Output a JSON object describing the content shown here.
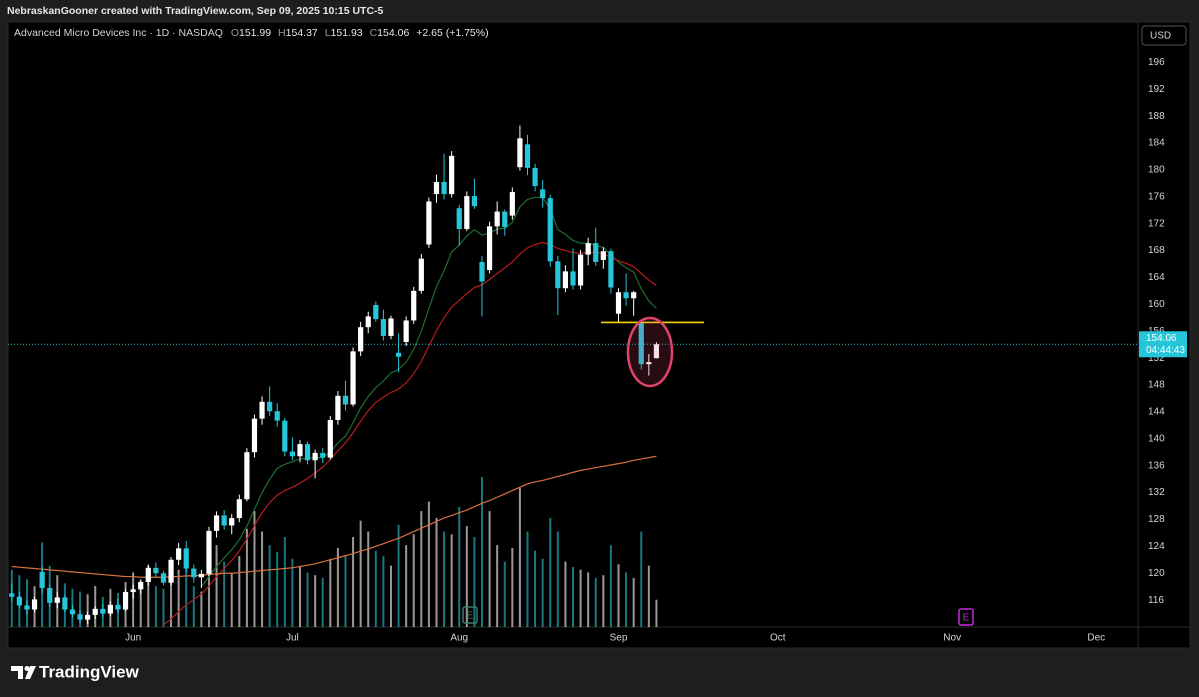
{
  "attribution": "NebraskanGooner created with TradingView.com, Sep 09, 2025 10:15 UTC-5",
  "brand": "TradingView",
  "chart_data": {
    "type": "candlestick",
    "title": "Advanced Micro Devices Inc · 1D · NASDAQ",
    "ohlc_labels": [
      "O",
      "H",
      "L",
      "C"
    ],
    "change": "+2.65 (+1.75%)",
    "currency": "USD",
    "countdown": "04:44:43",
    "last_price": 154.06,
    "up_color": "#ffffff",
    "down_color": "#26c6da",
    "ylim": [
      112,
      202
    ],
    "yticks": [
      116,
      120,
      124,
      128,
      132,
      136,
      140,
      144,
      148,
      152,
      156,
      160,
      164,
      168,
      172,
      176,
      180,
      184,
      188,
      192,
      196
    ],
    "grid": false,
    "categories": [
      null,
      null,
      null,
      null,
      null,
      null,
      null,
      null,
      null,
      null,
      null,
      null,
      null,
      null,
      null,
      null,
      "Jun",
      null,
      null,
      null,
      null,
      null,
      null,
      null,
      null,
      null,
      null,
      null,
      null,
      null,
      null,
      null,
      null,
      null,
      null,
      null,
      null,
      "Jul",
      null,
      null,
      null,
      null,
      null,
      null,
      null,
      null,
      null,
      null,
      null,
      null,
      null,
      null,
      null,
      null,
      null,
      null,
      null,
      null,
      null,
      "Aug",
      null,
      null,
      null,
      null,
      null,
      null,
      null,
      null,
      null,
      null,
      null,
      null,
      null,
      null,
      null,
      null,
      null,
      null,
      null,
      null,
      "Sep",
      null,
      null,
      null,
      null,
      null,
      null,
      null,
      null,
      null,
      null,
      null,
      null,
      null,
      null,
      null,
      null,
      null,
      null,
      null,
      null,
      "Oct",
      null,
      null,
      null,
      null,
      null,
      null,
      null,
      null,
      null,
      null,
      null,
      null,
      null,
      null,
      null,
      null,
      null,
      null,
      null,
      null,
      null,
      null,
      "Nov",
      null,
      null,
      null,
      null,
      null,
      null,
      null,
      null,
      null,
      null,
      null,
      null,
      null,
      null,
      null,
      null,
      null,
      null,
      "Dec",
      null,
      null,
      null,
      null,
      null
    ],
    "open": [
      117,
      116.5,
      115.2,
      114.6,
      120.2,
      117.8,
      115.6,
      116.4,
      114.6,
      113.9,
      113.1,
      113.8,
      114.7,
      114,
      115.3,
      114.6,
      117.2,
      117.6,
      118.7,
      120.8,
      120,
      118.6,
      122,
      123.7,
      120.7,
      119.4,
      119.9,
      126.3,
      128.6,
      127.1,
      128.2,
      131,
      138,
      143,
      145.5,
      144.1,
      142.7,
      138.1,
      137.4,
      139.2,
      136.8,
      137.9,
      137.2,
      142.8,
      146.4,
      145.1,
      153,
      156.6,
      159.9,
      157.8,
      155.3,
      152.8,
      154.4,
      157.6,
      162,
      168.9,
      176.4,
      178.2,
      176.4,
      174.3,
      171.2,
      176.1,
      166.3,
      165.1,
      171.6,
      173.8,
      173.2,
      180.4,
      183.8,
      180.3,
      177.1,
      175.8,
      166.4,
      162.4,
      164.9,
      162.8,
      167.4,
      169.1,
      166.6,
      167.9,
      158.6,
      161.8,
      160.9,
      157.2,
      151.1,
      151.99,
      null,
      null,
      null,
      null,
      null,
      null,
      null,
      null,
      null,
      null,
      null,
      null,
      null,
      null,
      null,
      null,
      null,
      null,
      null,
      null,
      null,
      null,
      null,
      null,
      null,
      null,
      null,
      null,
      null,
      null,
      null,
      null,
      null,
      null,
      null,
      null,
      null,
      null,
      null,
      null,
      null,
      null,
      null,
      null,
      null,
      null,
      null,
      null,
      null,
      null,
      null,
      null,
      null,
      null,
      null,
      null,
      null,
      null,
      null,
      null,
      null,
      null,
      null
    ],
    "high": [
      118.5,
      117.2,
      116,
      116.5,
      121,
      118.3,
      117.2,
      116.8,
      115.3,
      114.5,
      114.3,
      115.1,
      115.4,
      115.8,
      116.2,
      117.6,
      118.3,
      119.1,
      121.3,
      121.6,
      120.4,
      122.4,
      124.5,
      124.8,
      121.3,
      120.5,
      126.9,
      129.2,
      129.4,
      128.8,
      131.7,
      138.6,
      143.6,
      146.3,
      147.8,
      145.3,
      143.1,
      140.2,
      139.8,
      139.6,
      138.4,
      138.6,
      143.4,
      147.1,
      148.6,
      153.6,
      157.4,
      158.9,
      160.4,
      159.2,
      158.3,
      155.7,
      158.2,
      162.6,
      167.5,
      175.9,
      179.3,
      182.4,
      182.8,
      174.8,
      176.8,
      178.7,
      167.2,
      172.3,
      175.3,
      174.1,
      177.4,
      186.6,
      185.2,
      180.9,
      178.5,
      176.3,
      167.2,
      165.8,
      168.3,
      168.1,
      169.9,
      171.4,
      168.5,
      168.3,
      162.4,
      164.6,
      162,
      157.5,
      152.6,
      154.37,
      null,
      null,
      null,
      null,
      null,
      null,
      null,
      null,
      null,
      null,
      null,
      null,
      null,
      null,
      null,
      null,
      null,
      null,
      null,
      null,
      null,
      null,
      null,
      null,
      null,
      null,
      null,
      null,
      null,
      null,
      null,
      null,
      null,
      null,
      null,
      null,
      null,
      null,
      null,
      null,
      null,
      null,
      null,
      null,
      null,
      null,
      null,
      null,
      null,
      null,
      null,
      null,
      null,
      null,
      null,
      null,
      null,
      null,
      null,
      null,
      null,
      null,
      null
    ],
    "low": [
      115.8,
      114.8,
      113.9,
      114.2,
      117,
      115,
      114.8,
      114.2,
      113.4,
      112.6,
      112.5,
      113.2,
      113.5,
      113.6,
      114.1,
      114.3,
      116.2,
      116.9,
      118.1,
      119.4,
      118.2,
      118.2,
      121.2,
      120.1,
      118.6,
      117.8,
      119.6,
      125.3,
      126.5,
      125.8,
      127.6,
      130.7,
      137.2,
      142.1,
      143.4,
      141.8,
      137.4,
      136.8,
      136.5,
      136.2,
      134.1,
      136.4,
      136.9,
      142.1,
      144.2,
      144.8,
      152.3,
      155.7,
      157.4,
      154.6,
      154.8,
      149.9,
      153.8,
      157.1,
      161.6,
      168.4,
      175.1,
      175.6,
      175.9,
      168.7,
      170.9,
      174.2,
      158.2,
      164.6,
      170.4,
      170.2,
      172.6,
      179.9,
      179.2,
      176.8,
      174.4,
      165.6,
      158.4,
      161.8,
      162.2,
      162.2,
      165.8,
      165.7,
      165.3,
      161.6,
      157.4,
      159.8,
      158.3,
      150.3,
      149.4,
      151.93,
      null,
      null,
      null,
      null,
      null,
      null,
      null,
      null,
      null,
      null,
      null,
      null,
      null,
      null,
      null,
      null,
      null,
      null,
      null,
      null,
      null,
      null,
      null,
      null,
      null,
      null,
      null,
      null,
      null,
      null,
      null,
      null,
      null,
      null,
      null,
      null,
      null,
      null,
      null,
      null,
      null,
      null,
      null,
      null,
      null,
      null,
      null,
      null,
      null,
      null,
      null,
      null,
      null,
      null,
      null,
      null,
      null,
      null,
      null,
      null,
      null,
      null,
      null
    ],
    "close": [
      116.5,
      115.2,
      114.6,
      116.1,
      117.8,
      115.6,
      116.4,
      114.6,
      113.9,
      113.1,
      113.8,
      114.7,
      114,
      115.3,
      114.6,
      117.2,
      117.6,
      118.7,
      120.8,
      120,
      118.6,
      122,
      123.7,
      120.7,
      119.4,
      119.9,
      126.3,
      128.6,
      127.1,
      128.2,
      131,
      138,
      143,
      145.5,
      144.1,
      142.7,
      138.1,
      137.4,
      139.2,
      136.8,
      137.9,
      137.2,
      142.8,
      146.4,
      145.1,
      153,
      156.6,
      158.2,
      157.8,
      155.3,
      157.9,
      152.2,
      157.6,
      162,
      166.8,
      175.3,
      178.2,
      176.4,
      182.1,
      171.2,
      176.1,
      174.6,
      163.4,
      171.6,
      173.8,
      171.5,
      176.7,
      184.7,
      180.3,
      177.6,
      175.8,
      166.4,
      162.4,
      164.9,
      162.8,
      167.4,
      169.1,
      166.3,
      167.9,
      162.5,
      161.8,
      160.9,
      161.8,
      151.1,
      151.41,
      154.06,
      null,
      null,
      null,
      null,
      null,
      null,
      null,
      null,
      null,
      null,
      null,
      null,
      null,
      null,
      null,
      null,
      null,
      null,
      null,
      null,
      null,
      null,
      null,
      null,
      null,
      null,
      null,
      null,
      null,
      null,
      null,
      null,
      null,
      null,
      null,
      null,
      null,
      null,
      null,
      null,
      null,
      null,
      null,
      null,
      null,
      null,
      null,
      null,
      null,
      null,
      null,
      null,
      null,
      null,
      null,
      null,
      null,
      null,
      null,
      null,
      null,
      null,
      null
    ],
    "volume": [
      42,
      38,
      35,
      30,
      62,
      45,
      38,
      32,
      28,
      26,
      24,
      30,
      22,
      28,
      25,
      33,
      40,
      34,
      45,
      30,
      28,
      38,
      42,
      44,
      30,
      26,
      55,
      60,
      48,
      40,
      52,
      72,
      85,
      70,
      60,
      55,
      66,
      50,
      44,
      40,
      38,
      36,
      50,
      58,
      52,
      66,
      78,
      70,
      56,
      52,
      45,
      75,
      60,
      68,
      85,
      92,
      80,
      70,
      68,
      88,
      74,
      66,
      110,
      85,
      60,
      48,
      58,
      102,
      70,
      56,
      50,
      80,
      70,
      48,
      44,
      42,
      40,
      36,
      38,
      60,
      46,
      40,
      36,
      70,
      45,
      20,
      null,
      null,
      null,
      null,
      null,
      null,
      null,
      null,
      null,
      null,
      null,
      null,
      null,
      null,
      null,
      null,
      null,
      null,
      null,
      null,
      null,
      null,
      null,
      null,
      null,
      null,
      null,
      null,
      null,
      null,
      null,
      null,
      null,
      null,
      null,
      null,
      null,
      null,
      null,
      null,
      null,
      null,
      null,
      null,
      null,
      null,
      null,
      null,
      null,
      null,
      null,
      null,
      null,
      null,
      null,
      null,
      null,
      null,
      null,
      null,
      null,
      null,
      null
    ],
    "overlays": [
      {
        "color": "#1f6e30",
        "values": [
          null,
          null,
          null,
          null,
          null,
          null,
          null,
          null,
          null,
          null,
          null,
          null,
          null,
          null,
          null,
          null,
          null,
          null,
          null,
          null,
          null,
          null,
          null,
          null,
          null,
          118,
          119.5,
          121,
          122.3,
          123.5,
          125,
          127,
          129.5,
          132,
          134,
          135.6,
          136.2,
          136.6,
          137,
          137.1,
          137.2,
          137.2,
          138,
          139.4,
          140.4,
          142.4,
          144.6,
          146.3,
          147.6,
          148.6,
          149.8,
          150.3,
          151.4,
          153.3,
          156,
          159.4,
          162.6,
          165,
          167.8,
          168.8,
          170.2,
          171.1,
          170.3,
          170.6,
          171.2,
          171.3,
          172.2,
          174.5,
          175.6,
          175.9,
          175.9,
          174.2,
          171.1,
          170.4,
          169.5,
          169.1,
          169.1,
          168.7,
          168.5,
          167.3,
          166.3,
          165.4,
          164.8,
          162.3,
          160.5,
          159.4,
          null,
          null,
          null,
          null,
          null,
          null,
          null,
          null,
          null,
          null,
          null,
          null,
          null,
          null,
          null,
          null,
          null,
          null,
          null,
          null,
          null,
          null,
          null,
          null,
          null,
          null,
          null,
          null,
          null,
          null,
          null,
          null,
          null,
          null,
          null,
          null,
          null,
          null,
          null,
          null,
          null,
          null,
          null,
          null,
          null,
          null,
          null,
          null,
          null,
          null,
          null,
          null,
          null,
          null,
          null,
          null,
          null,
          null,
          null,
          null,
          null,
          null,
          null
        ]
      },
      {
        "color": "#b71c1c",
        "values": [
          null,
          null,
          null,
          null,
          null,
          null,
          null,
          null,
          null,
          null,
          null,
          null,
          null,
          null,
          null,
          null,
          null,
          null,
          null,
          null,
          112.3,
          113.2,
          114.3,
          115.3,
          116.1,
          116.9,
          118.1,
          119.5,
          120.7,
          121.9,
          123.3,
          125.1,
          127.1,
          129,
          130.5,
          131.6,
          132.3,
          132.8,
          133.4,
          134.1,
          134.9,
          135.8,
          136.9,
          138.2,
          139.4,
          140.9,
          142.6,
          144.2,
          145.4,
          146.2,
          146.9,
          147.4,
          148.3,
          149.7,
          151.5,
          153.8,
          156.1,
          158,
          159.6,
          160.6,
          161.6,
          162.5,
          162.9,
          163.7,
          164.6,
          165.4,
          166.3,
          167.5,
          168.4,
          168.9,
          169.2,
          168.9,
          168.3,
          168,
          167.7,
          167.6,
          167.7,
          167.8,
          167.5,
          167,
          166.5,
          166.1,
          165.6,
          164.6,
          163.6,
          162.8,
          null,
          null,
          null,
          null,
          null,
          null,
          null,
          null,
          null,
          null,
          null,
          null,
          null,
          null,
          null,
          null,
          null,
          null,
          null,
          null,
          null,
          null,
          null,
          null,
          null,
          null,
          null,
          null,
          null,
          null,
          null,
          null,
          null,
          null,
          null,
          null,
          null,
          null,
          null,
          null,
          null,
          null,
          null,
          null,
          null,
          null,
          null,
          null,
          null,
          null,
          null,
          null,
          null,
          null,
          null,
          null,
          null,
          null,
          null,
          null,
          null,
          null,
          null
        ]
      },
      {
        "color": "#d9703f",
        "values": [
          121,
          120.9,
          120.8,
          120.7,
          120.6,
          120.5,
          120.4,
          120.3,
          120.2,
          120.1,
          120,
          119.9,
          119.8,
          119.7,
          119.6,
          119.5,
          119.5,
          119.4,
          119.4,
          119.4,
          119.4,
          119.5,
          119.5,
          119.6,
          119.6,
          119.7,
          119.8,
          119.9,
          120,
          120,
          120.1,
          120.2,
          120.3,
          120.4,
          120.5,
          120.6,
          120.7,
          120.8,
          121,
          121.2,
          121.4,
          121.7,
          122,
          122.3,
          122.6,
          122.9,
          123.3,
          123.6,
          124,
          124.4,
          124.8,
          125.2,
          125.7,
          126.2,
          126.7,
          127.2,
          127.7,
          128.2,
          128.6,
          129,
          129.4,
          129.9,
          130.4,
          130.8,
          131.3,
          131.8,
          132.3,
          132.8,
          133.3,
          133.6,
          133.8,
          134.1,
          134.4,
          134.7,
          135,
          135.3,
          135.5,
          135.7,
          135.9,
          136.1,
          136.3,
          136.5,
          136.8,
          137,
          137.2,
          137.4,
          null,
          null,
          null,
          null,
          null,
          null,
          null,
          null,
          null,
          null,
          null,
          null,
          null,
          null,
          null,
          null,
          null,
          null,
          null,
          null,
          null,
          null,
          null,
          null,
          null,
          null,
          null,
          null,
          null,
          null,
          null,
          null,
          null,
          null,
          null,
          null,
          null,
          null,
          null,
          null,
          null,
          null,
          null,
          null,
          null,
          null,
          null,
          null,
          null,
          null,
          null,
          null,
          null,
          null,
          null,
          null,
          null,
          null,
          null,
          null,
          null,
          null,
          null
        ]
      }
    ],
    "hline": {
      "value": 157.3,
      "color": "#f5d60a"
    },
    "events": [
      {
        "label": "E",
        "color": "#3f7a6a"
      },
      {
        "label": "E",
        "color": "#c42bd6"
      }
    ]
  }
}
